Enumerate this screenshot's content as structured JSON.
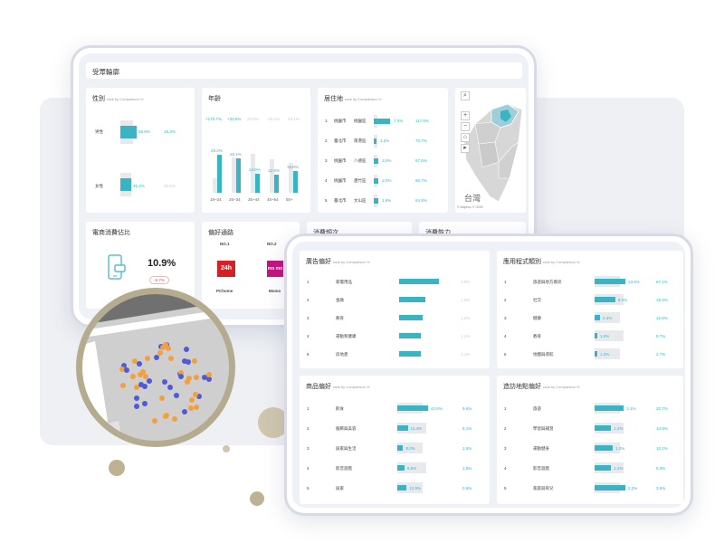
{
  "back_panel": {
    "header": "受眾輪廓",
    "gender": {
      "title": "性別",
      "subtitle": "rank by Comparison %",
      "rows": [
        {
          "label": "男性",
          "value": "58.8%",
          "compare": "19.3%"
        },
        {
          "label": "女性",
          "value": "41.2%",
          "compare": "10.6%"
        }
      ]
    },
    "age": {
      "title": "年齡",
      "summary": [
        "+170.7%",
        "+33.5%",
        "24.6%",
        "-20.1%",
        "34.1%"
      ],
      "bar_labels": [
        "29.2%",
        "26.2%",
        "14.9%",
        "13.9%",
        "16.8%"
      ],
      "categories": [
        "18~24",
        "25~34",
        "35~44",
        "45~54",
        "55+"
      ],
      "values": [
        29.2,
        26.2,
        14.9,
        13.9,
        16.8
      ],
      "background": [
        11,
        27,
        30,
        26,
        23
      ]
    },
    "residence": {
      "title": "居住地",
      "subtitle": "rank by Comparison %",
      "rows": [
        {
          "rank": "1",
          "city": "桃園市",
          "district": "桃園區",
          "value": "7.0%",
          "compare": "117.6%",
          "fill": 1.0
        },
        {
          "rank": "2",
          "city": "臺北市",
          "district": "南港區",
          "value": "1.2%",
          "compare": "70.7%",
          "fill": 0.17
        },
        {
          "rank": "3",
          "city": "桃園市",
          "district": "八德區",
          "value": "2.0%",
          "compare": "67.6%",
          "fill": 0.29
        },
        {
          "rank": "4",
          "city": "桃園市",
          "district": "蘆竹區",
          "value": "2.0%",
          "compare": "66.7%",
          "fill": 0.29
        },
        {
          "rank": "5",
          "city": "臺北市",
          "district": "文山區",
          "value": "1.9%",
          "compare": "64.8%",
          "fill": 0.27
        }
      ]
    },
    "map": {
      "label": "台灣",
      "attribution": "© Mapbox © OSM",
      "controls": [
        "+",
        "−",
        "⌂",
        "▸"
      ]
    },
    "ecommerce": {
      "title": "電商消費佔比",
      "value": "10.9%",
      "change": "-9.7%"
    },
    "channels": {
      "title": "偏好通路",
      "items": [
        {
          "rank": "NO.1",
          "name": "PChome",
          "logo_text": "24h",
          "color": "#d62027"
        },
        {
          "rank": "NO.2",
          "name": "Momo",
          "logo_text": "mo mo",
          "color": "#c4127f"
        }
      ]
    },
    "frequency": {
      "title": "消費頻次"
    },
    "power": {
      "title": "消費能力"
    }
  },
  "front_panel": {
    "ad_pref": {
      "title": "廣告偏好",
      "subtitle": "rank by Comparison %",
      "rows": [
        {
          "rank": "1",
          "label": "家電用品",
          "value": "2.0%",
          "fill": 1.0
        },
        {
          "rank": "2",
          "label": "金融",
          "value": "1.3%",
          "fill": 0.65
        },
        {
          "rank": "3",
          "label": "教育",
          "value": "1.2%",
          "fill": 0.6
        },
        {
          "rank": "4",
          "label": "運動和健康",
          "value": "1.1%",
          "fill": 0.55
        },
        {
          "rank": "5",
          "label": "房地產",
          "value": "1.1%",
          "fill": 0.55
        }
      ]
    },
    "app_pref": {
      "title": "應用程式類別",
      "subtitle": "rank by Comparison %",
      "rows": [
        {
          "rank": "1",
          "label": "旅遊與地方資訊",
          "value": "13.5%",
          "compare": "67.1%",
          "fill": 1.0
        },
        {
          "rank": "2",
          "label": "社交",
          "value": "9.0%",
          "compare": "19.3%",
          "fill": 0.67
        },
        {
          "rank": "3",
          "label": "健康",
          "value": "2.4%",
          "compare": "12.8%",
          "fill": 0.18
        },
        {
          "rank": "4",
          "label": "教育",
          "value": "1.0%",
          "compare": "5.7%",
          "fill": 0.07
        },
        {
          "rank": "5",
          "label": "地圖與導航",
          "value": "1.2%",
          "compare": "2.7%",
          "fill": 0.09
        }
      ]
    },
    "product_pref": {
      "title": "商品偏好",
      "subtitle": "rank by Comparison %",
      "rows": [
        {
          "rank": "1",
          "label": "飲食",
          "value": "42.6%",
          "compare": "9.6%",
          "fill": 1.0
        },
        {
          "rank": "2",
          "label": "服飾與美容",
          "value": "14.4%",
          "compare": "8.1%",
          "fill": 0.34
        },
        {
          "rank": "3",
          "label": "居家與生活",
          "value": "8.0%",
          "compare": "1.5%",
          "fill": 0.19
        },
        {
          "rank": "4",
          "label": "影音遊戲",
          "value": "9.8%",
          "compare": "1.5%",
          "fill": 0.23
        },
        {
          "rank": "5",
          "label": "居家",
          "value": "12.9%",
          "compare": "0.6%",
          "fill": 0.3
        }
      ]
    },
    "place_pref": {
      "title": "造訪地點偏好",
      "subtitle": "rank by Comparison %",
      "rows": [
        {
          "rank": "1",
          "label": "旅遊",
          "value": "2.1%",
          "compare": "20.7%",
          "fill": 0.95
        },
        {
          "rank": "2",
          "label": "學習與補習",
          "value": "1.2%",
          "compare": "14.9%",
          "fill": 0.54
        },
        {
          "rank": "3",
          "label": "運動健身",
          "value": "1.3%",
          "compare": "10.2%",
          "fill": 0.59
        },
        {
          "rank": "4",
          "label": "影音遊戲",
          "value": "1.2%",
          "compare": "5.0%",
          "fill": 0.54
        },
        {
          "rank": "5",
          "label": "家庭與育兒",
          "value": "2.2%",
          "compare": "3.6%",
          "fill": 1.0
        }
      ]
    }
  },
  "colors": {
    "teal": "#3ab4c2",
    "orange": "#f2a03d",
    "blue": "#4f5ad9",
    "gold": "#b5ab8e"
  }
}
